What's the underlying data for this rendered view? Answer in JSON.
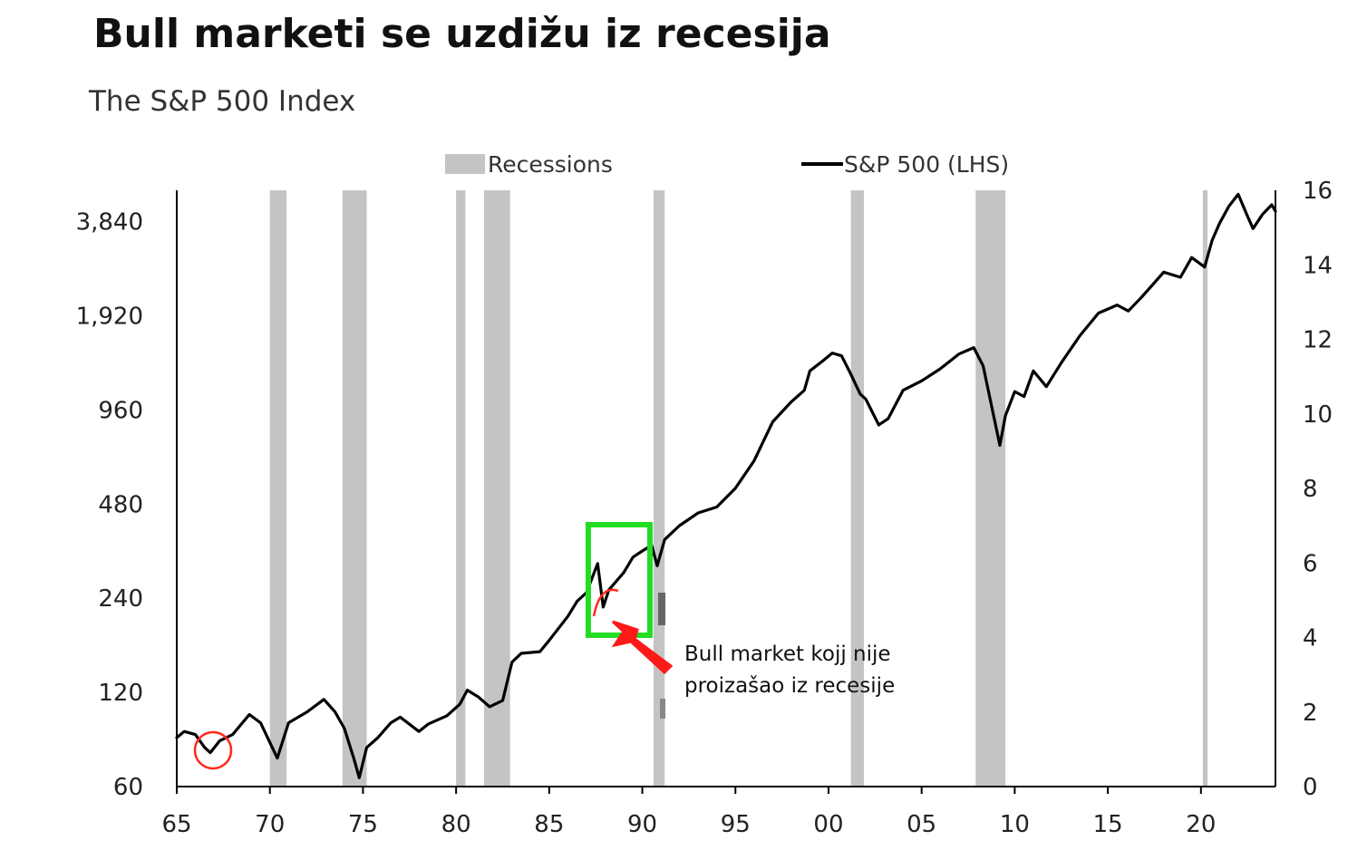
{
  "chart_data": {
    "type": "line",
    "title": "Bull marketi se uzdižu iz recesija",
    "subtitle": "The S&P 500 Index",
    "legend": {
      "placement": "top-center",
      "recessions_label": "Recessions",
      "series_label": "S&P 500 (LHS)"
    },
    "x_axis": {
      "range": [
        1965,
        2024
      ],
      "tick_values": [
        1965,
        1970,
        1975,
        1980,
        1985,
        1990,
        1995,
        2000,
        2005,
        2010,
        2015,
        2020
      ],
      "tick_labels": [
        "65",
        "70",
        "75",
        "80",
        "85",
        "90",
        "95",
        "00",
        "05",
        "10",
        "15",
        "20"
      ]
    },
    "y_axis_left": {
      "scale": "log2",
      "range": [
        60,
        4840
      ],
      "tick_values": [
        60,
        120,
        240,
        480,
        960,
        1920,
        3840
      ],
      "tick_labels": [
        "60",
        "120",
        "240",
        "480",
        "960",
        "1,920",
        "3,840"
      ]
    },
    "y_axis_right": {
      "range": [
        0,
        16
      ],
      "tick_values": [
        0,
        2,
        4,
        6,
        8,
        10,
        12,
        14,
        16
      ],
      "tick_labels": [
        "0",
        "2",
        "4",
        "6",
        "8",
        "10",
        "12",
        "14",
        "16"
      ]
    },
    "grid": false,
    "recessions": [
      [
        1970.0,
        1970.9
      ],
      [
        1973.9,
        1975.2
      ],
      [
        1980.0,
        1980.5
      ],
      [
        1981.5,
        1982.9
      ],
      [
        1990.6,
        1991.2
      ],
      [
        2001.2,
        2001.9
      ],
      [
        2007.9,
        2009.5
      ],
      [
        2020.1,
        2020.35
      ]
    ],
    "series": [
      {
        "name": "S&P 500 (LHS)",
        "color": "#000000",
        "x": [
          1965.0,
          1965.4,
          1966.0,
          1966.5,
          1966.8,
          1967.3,
          1968.0,
          1968.9,
          1969.5,
          1970.4,
          1971.0,
          1972.0,
          1972.9,
          1973.5,
          1974.0,
          1974.5,
          1974.8,
          1975.2,
          1975.8,
          1976.5,
          1977.0,
          1978.0,
          1978.5,
          1979.5,
          1980.2,
          1980.6,
          1981.2,
          1981.8,
          1982.5,
          1983.0,
          1983.5,
          1984.5,
          1985.0,
          1986.0,
          1986.5,
          1987.0,
          1987.6,
          1987.9,
          1988.2,
          1989.0,
          1989.5,
          1990.0,
          1990.5,
          1990.8,
          1991.2,
          1992.0,
          1993.0,
          1994.0,
          1995.0,
          1996.0,
          1997.0,
          1998.0,
          1998.7,
          1999.0,
          1999.7,
          2000.2,
          2000.7,
          2001.2,
          2001.7,
          2002.0,
          2002.7,
          2003.2,
          2004.0,
          2005.0,
          2006.0,
          2007.0,
          2007.8,
          2008.3,
          2008.8,
          2009.2,
          2009.5,
          2010.0,
          2010.5,
          2011.0,
          2011.7,
          2012.5,
          2013.5,
          2014.5,
          2015.5,
          2016.1,
          2016.8,
          2017.5,
          2018.0,
          2018.9,
          2019.5,
          2020.2,
          2020.6,
          2021.0,
          2021.5,
          2022.0,
          2022.5,
          2022.8,
          2023.3,
          2023.8,
          2024.0
        ],
        "y": [
          86,
          90,
          88,
          80,
          77,
          84,
          88,
          102,
          96,
          74,
          96,
          104,
          114,
          104,
          92,
          74,
          64,
          80,
          86,
          96,
          100,
          90,
          95,
          101,
          110,
          122,
          116,
          108,
          113,
          150,
          160,
          162,
          176,
          210,
          235,
          250,
          310,
          225,
          255,
          290,
          325,
          340,
          355,
          305,
          370,
          410,
          450,
          470,
          540,
          660,
          880,
          1020,
          1110,
          1280,
          1380,
          1460,
          1430,
          1250,
          1080,
          1040,
          860,
          900,
          1110,
          1190,
          1300,
          1450,
          1520,
          1330,
          960,
          740,
          920,
          1100,
          1060,
          1280,
          1140,
          1360,
          1660,
          1960,
          2080,
          1990,
          2200,
          2450,
          2650,
          2550,
          2950,
          2750,
          3350,
          3800,
          4300,
          4700,
          4000,
          3650,
          4050,
          4350,
          4150
        ]
      }
    ],
    "annotations": [
      {
        "text_lines": [
          "Bull market kojj nije",
          "proizašao iz recesije"
        ]
      }
    ]
  }
}
